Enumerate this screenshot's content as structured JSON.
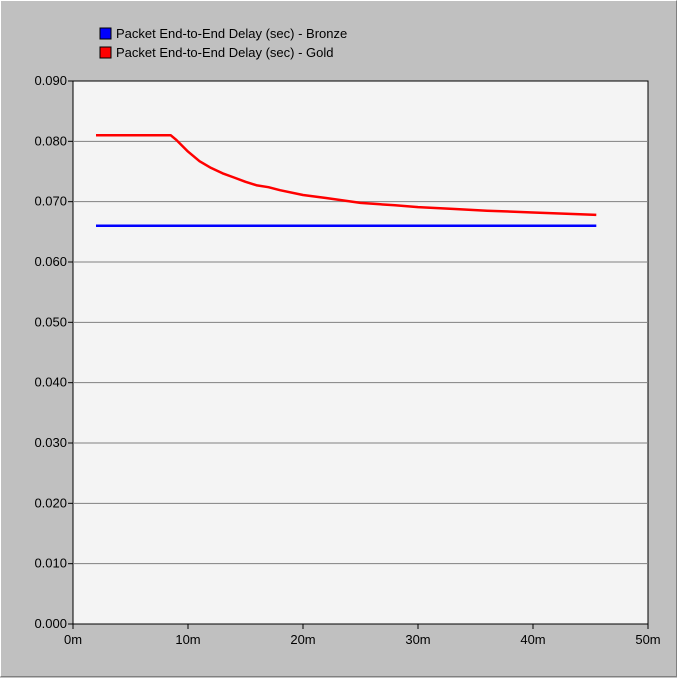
{
  "colors": {
    "background": "#c0c0c0",
    "plot_background": "#f4f4f4",
    "grid": "#808080",
    "bronze": "#0000ff",
    "gold": "#ff0000"
  },
  "chart_data": {
    "type": "line",
    "title": "",
    "xlabel": "",
    "ylabel": "",
    "xlim": [
      0,
      50
    ],
    "ylim": [
      0,
      0.09
    ],
    "x_ticks": [
      0,
      10,
      20,
      30,
      40,
      50
    ],
    "x_tick_labels": [
      "0m",
      "10m",
      "20m",
      "30m",
      "40m",
      "50m"
    ],
    "y_ticks": [
      0,
      0.01,
      0.02,
      0.03,
      0.04,
      0.05,
      0.06,
      0.07,
      0.08,
      0.09
    ],
    "y_tick_labels": [
      "0.000",
      "0.010",
      "0.020",
      "0.030",
      "0.040",
      "0.050",
      "0.060",
      "0.070",
      "0.080",
      "0.090"
    ],
    "grid": "horizontal",
    "legend_position": "top-left",
    "series": [
      {
        "name": "Packet End-to-End Delay (sec) - Bronze",
        "color": "#0000ff",
        "x": [
          2,
          45.5
        ],
        "y": [
          0.066,
          0.066
        ]
      },
      {
        "name": "Packet End-to-End Delay (sec) - Gold",
        "color": "#ff0000",
        "x": [
          2,
          8,
          8.5,
          9,
          10,
          11,
          12,
          13,
          14,
          15,
          16,
          17,
          18,
          20,
          22,
          25,
          28,
          30,
          33,
          36,
          40,
          45.5
        ],
        "y": [
          0.081,
          0.081,
          0.081,
          0.0802,
          0.0783,
          0.0767,
          0.0756,
          0.0747,
          0.074,
          0.0733,
          0.0727,
          0.0724,
          0.0719,
          0.0711,
          0.0706,
          0.0698,
          0.0694,
          0.0691,
          0.0688,
          0.0685,
          0.0682,
          0.0678
        ]
      }
    ]
  }
}
